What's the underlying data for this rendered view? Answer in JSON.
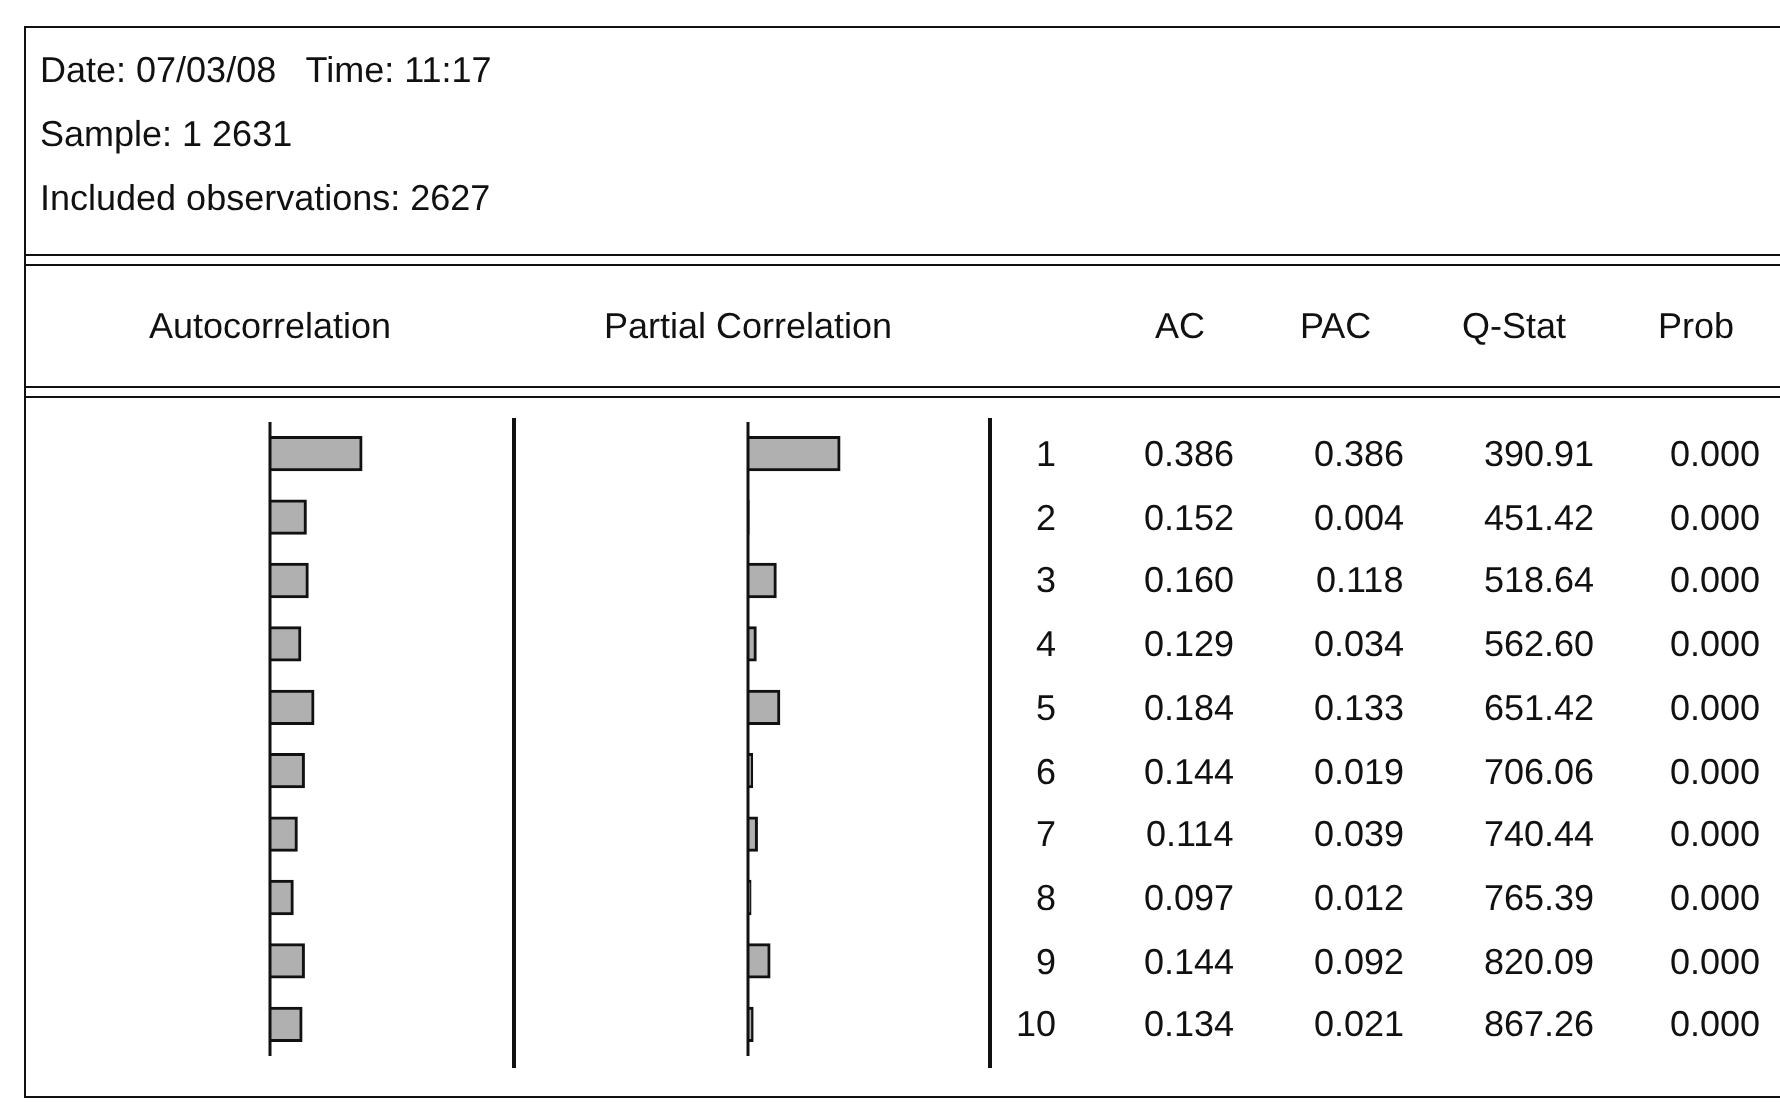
{
  "chart_data": [
    {
      "type": "bar",
      "orientation": "horizontal",
      "title": "Autocorrelation",
      "categories": [
        "1",
        "2",
        "3",
        "4",
        "5",
        "6",
        "7",
        "8",
        "9",
        "10"
      ],
      "values": [
        0.386,
        0.152,
        0.16,
        0.129,
        0.184,
        0.144,
        0.114,
        0.097,
        0.144,
        0.134
      ],
      "value_labels": [
        "0.386",
        "0.152",
        "0.160",
        "0.129",
        "0.184",
        "0.144",
        "0.114",
        "0.097",
        "0.144",
        "0.134"
      ],
      "color": "#b0b0b0",
      "xlim": [
        -1,
        1
      ]
    },
    {
      "type": "bar",
      "orientation": "horizontal",
      "title": "Partial Correlation",
      "categories": [
        null,
        null,
        null,
        null,
        null,
        null,
        null,
        null,
        null,
        null
      ],
      "values": [
        0.386,
        0.004,
        0.118,
        0.034,
        0.133,
        0.019,
        0.039,
        0.012,
        0.092,
        0.021
      ],
      "value_labels": [
        "0.386",
        "0.004",
        "0.118",
        "0.034",
        "0.133",
        "0.019",
        "0.039",
        "0.012",
        "0.092",
        "0.021"
      ],
      "color": "#b0b0b0",
      "xlim": [
        -1,
        1
      ]
    },
    {
      "type": "other",
      "title": "Date: 07/03/08   Time: 11:17",
      "subtitle": "Sample: 1 2631",
      "annotations": [
        "Included observations: 2627",
        "AC",
        "PAC",
        "Q-Stat",
        "Prob",
        "390.91",
        "451.42",
        "518.64",
        "562.60",
        "651.42",
        "706.06",
        "740.44",
        "765.39",
        "820.09",
        "867.26",
        "0.000",
        "0.000",
        "0.000",
        "0.000",
        "0.000",
        "0.000",
        "0.000",
        "0.000",
        "0.000",
        "0.000"
      ]
    }
  ]
}
